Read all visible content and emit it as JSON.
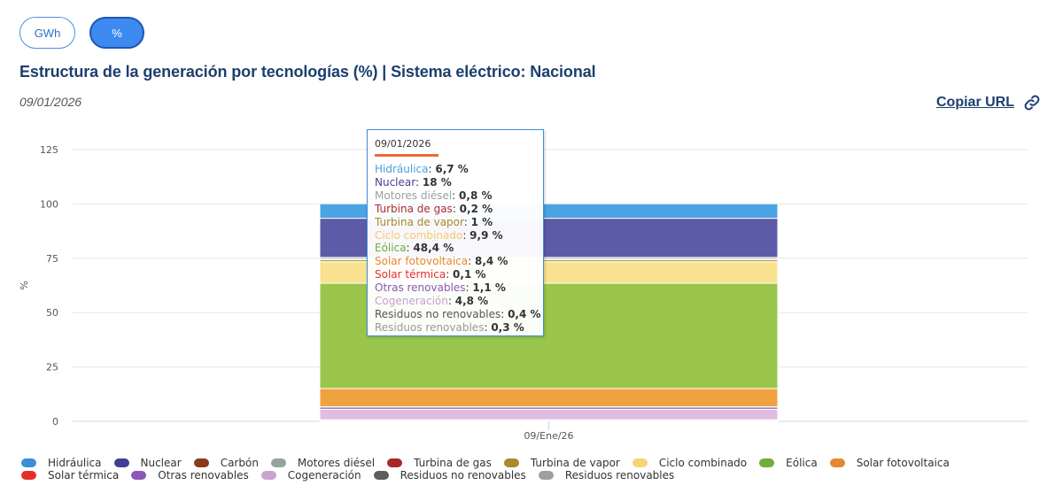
{
  "toggles": {
    "gwh_label": "GWh",
    "pct_label": "%",
    "active": "%"
  },
  "header": {
    "title": "Estructura de la generación por tecnologías (%) | Sistema eléctrico: Nacional",
    "date": "09/01/2026",
    "copy_url_label": "Copiar URL",
    "copy_url_icon": "link-icon"
  },
  "tooltip": {
    "date": "09/01/2026",
    "accent_color": "#ee6a3a",
    "items": [
      {
        "name": "Hidráulica",
        "value": "6,7 %",
        "color": "#4a9fe0"
      },
      {
        "name": "Nuclear",
        "value": "18 %",
        "color": "#413f92"
      },
      {
        "name": "Motores diésel",
        "value": "0,8 %",
        "color": "#94a39e"
      },
      {
        "name": "Turbina de gas",
        "value": "0,2 %",
        "color": "#b22a2a"
      },
      {
        "name": "Turbina de vapor",
        "value": "1 %",
        "color": "#a88a2e"
      },
      {
        "name": "Ciclo combinado",
        "value": "9,9 %",
        "color": "#f6c86e"
      },
      {
        "name": "Eólica",
        "value": "48,4 %",
        "color": "#72ac39"
      },
      {
        "name": "Solar fotovoltaica",
        "value": "8,4 %",
        "color": "#e3882f"
      },
      {
        "name": "Solar térmica",
        "value": "0,1 %",
        "color": "#e62e2e"
      },
      {
        "name": "Otras renovables",
        "value": "1,1 %",
        "color": "#8d58ba"
      },
      {
        "name": "Cogeneración",
        "value": "4,8 %",
        "color": "#c9a0d0"
      },
      {
        "name": "Residuos no renovables",
        "value": "0,4 %",
        "color": "#555555"
      },
      {
        "name": "Residuos renovables",
        "value": "0,3 %",
        "color": "#999999"
      }
    ]
  },
  "chart_data": {
    "type": "bar",
    "stacked": true,
    "title": "Estructura de la generación por tecnologías (%) | Sistema eléctrico: Nacional",
    "xlabel": "",
    "ylabel": "%",
    "categories": [
      "09/Ene/26"
    ],
    "ylim": [
      0,
      125
    ],
    "yticks": [
      0,
      25,
      50,
      75,
      100,
      125
    ],
    "grid": true,
    "legend_position": "bottom",
    "series": [
      {
        "name": "Hidráulica",
        "values": [
          6.7
        ],
        "color": "#4ba4e2",
        "legend_color": "#3a8fd6"
      },
      {
        "name": "Nuclear",
        "values": [
          18
        ],
        "color": "#5d5aa7",
        "legend_color": "#413f92"
      },
      {
        "name": "Carbón",
        "values": [
          0
        ],
        "color": "#8b3a1a",
        "legend_color": "#8b3a1a"
      },
      {
        "name": "Motores diésel",
        "values": [
          0.8
        ],
        "color": "#a8b4b0",
        "legend_color": "#94a39e"
      },
      {
        "name": "Turbina de gas",
        "values": [
          0.2
        ],
        "color": "#b53333",
        "legend_color": "#a82828"
      },
      {
        "name": "Turbina de vapor",
        "values": [
          1
        ],
        "color": "#b8a048",
        "legend_color": "#a88a2e"
      },
      {
        "name": "Ciclo combinado",
        "values": [
          9.9
        ],
        "color": "#f9e28f",
        "legend_color": "#f8d27a"
      },
      {
        "name": "Eólica",
        "values": [
          48.4
        ],
        "color": "#99c64a",
        "legend_color": "#72ac39"
      },
      {
        "name": "Solar fotovoltaica",
        "values": [
          8.4
        ],
        "color": "#f0a23f",
        "legend_color": "#e3882f"
      },
      {
        "name": "Solar térmica",
        "values": [
          0.1
        ],
        "color": "#e84444",
        "legend_color": "#e63027"
      },
      {
        "name": "Otras renovables",
        "values": [
          1.1
        ],
        "color": "#a07ac8",
        "legend_color": "#8d58ba"
      },
      {
        "name": "Cogeneración",
        "values": [
          4.8
        ],
        "color": "#dfbde0",
        "legend_color": "#cba3ce"
      },
      {
        "name": "Residuos no renovables",
        "values": [
          0.4
        ],
        "color": "#8a8a8a",
        "legend_color": "#5e5e5e"
      },
      {
        "name": "Residuos renovables",
        "values": [
          0.3
        ],
        "color": "#bcbcbc",
        "legend_color": "#9e9e9e"
      }
    ]
  }
}
